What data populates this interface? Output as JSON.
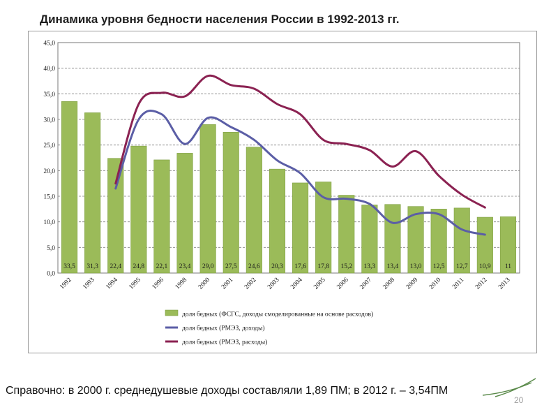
{
  "page": {
    "title": "Динамика уровня бедности населения России в 1992-2013 гг.",
    "note": "Справочно: в 2000 г. среднедушевые доходы составляли 1,89 ПМ; в 2012 г. – 3,54ПМ",
    "page_number": "20"
  },
  "colors": {
    "bar_fill": "#9bbb59",
    "bar_stroke": "#7f9f43",
    "line_income": "#5b5ea6",
    "line_expense": "#8b2252",
    "grid": "#808080",
    "axis_text": "#1a1a1a"
  },
  "chart_data": {
    "type": "bar",
    "categories": [
      "1992",
      "1993",
      "1994",
      "1995",
      "1996",
      "1998",
      "2000",
      "2001",
      "2002",
      "2003",
      "2004",
      "2005",
      "2006",
      "2007",
      "2008",
      "2009",
      "2010",
      "2011",
      "2012",
      "2013"
    ],
    "ylim": [
      0,
      45
    ],
    "ytick_step": 5,
    "ytick_labels": [
      "0,0",
      "5,0",
      "10,0",
      "15,0",
      "20,0",
      "25,0",
      "30,0",
      "35,0",
      "40,0",
      "45,0"
    ],
    "grid": true,
    "legend_position": "bottom",
    "series": [
      {
        "name": "доля бедных  (ФСГС, доходы смоделированные  на основе расходов)",
        "kind": "bar",
        "values": [
          33.5,
          31.3,
          22.4,
          24.8,
          22.1,
          23.4,
          29.0,
          27.5,
          24.6,
          20.3,
          17.6,
          17.8,
          15.2,
          13.3,
          13.4,
          13.0,
          12.5,
          12.7,
          10.9,
          11
        ],
        "labels": [
          "33,5",
          "31,3",
          "22,4",
          "24,8",
          "22,1",
          "23,4",
          "29,0",
          "27,5",
          "24,6",
          "20,3",
          "17,6",
          "17,8",
          "15,2",
          "13,3",
          "13,4",
          "13,0",
          "12,5",
          "12,7",
          "10,9",
          "11"
        ]
      },
      {
        "name": "доля бедных (РМЭЗ, доходы)",
        "kind": "line",
        "values": [
          null,
          null,
          16.5,
          30.0,
          31.0,
          25.2,
          30.3,
          28.5,
          26.0,
          22.0,
          19.5,
          14.8,
          14.5,
          13.5,
          9.8,
          11.5,
          11.5,
          8.5,
          7.5,
          null
        ]
      },
      {
        "name": "доля бедных (РМЭЗ, расходы)",
        "kind": "line",
        "values": [
          null,
          null,
          17.5,
          33.0,
          35.2,
          34.5,
          38.5,
          36.7,
          36.0,
          33.0,
          31.0,
          26.0,
          25.2,
          24.0,
          20.8,
          23.8,
          19.0,
          15.3,
          12.8,
          null
        ]
      }
    ]
  }
}
